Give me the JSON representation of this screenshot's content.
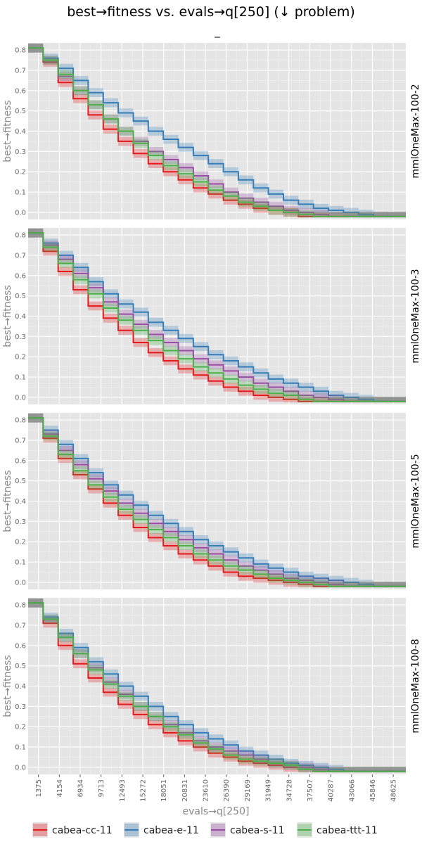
{
  "chart_data": {
    "type": "line",
    "title": "best→fitness vs. evals→q[250] (↓ problem)",
    "subtitle": "_",
    "xlabel": "evals→q[250]",
    "ylabel": "best→fitness",
    "xlim": [
      0,
      50300
    ],
    "ylim": [
      -0.035,
      0.835
    ],
    "yticks": [
      0.0,
      0.1,
      0.2,
      0.3,
      0.4,
      0.5,
      0.6,
      0.7,
      0.8
    ],
    "ytick_labels": [
      "0.0",
      "0.1",
      "0.2",
      "0.3",
      "0.4",
      "0.5",
      "0.6",
      "0.7",
      "0.8"
    ],
    "xticks": [
      1375,
      4154,
      6934,
      9713,
      12493,
      15272,
      18051,
      20831,
      23610,
      26390,
      29169,
      31949,
      34728,
      37507,
      40287,
      43066,
      45846,
      48625
    ],
    "xtick_labels": [
      "1375",
      "4154",
      "6934",
      "9713",
      "12493",
      "15272",
      "18051",
      "20831",
      "23610",
      "26390",
      "29169",
      "31949",
      "34728",
      "37507",
      "40287",
      "43066",
      "45846",
      "48625"
    ],
    "grid": true,
    "legend_position": "bottom",
    "colors": {
      "cabea-cc-11": "#e41a1c",
      "cabea-e-11": "#377eb8",
      "cabea-s-11": "#984ea3",
      "cabea-ttt-11": "#4daf4a"
    },
    "legend": [
      "cabea-cc-11",
      "cabea-e-11",
      "cabea-s-11",
      "cabea-ttt-11"
    ],
    "x": [
      0,
      2000,
      4000,
      6000,
      8000,
      10000,
      12000,
      14000,
      16000,
      18000,
      20000,
      22000,
      24000,
      26000,
      28000,
      30000,
      32000,
      34000,
      36000,
      38000,
      40000,
      42000,
      44000,
      46000,
      48000,
      50300
    ],
    "panels": [
      {
        "facet": "mmlOneMax-100-2",
        "series": [
          {
            "name": "cabea-cc-11",
            "values": [
              0.81,
              0.74,
              0.64,
              0.56,
              0.48,
              0.41,
              0.35,
              0.29,
              0.24,
              0.2,
              0.16,
              0.12,
              0.09,
              0.06,
              0.04,
              0.02,
              0.01,
              0.0,
              -0.02,
              -0.02,
              -0.02,
              -0.02,
              -0.02,
              -0.02,
              -0.02,
              -0.02
            ]
          },
          {
            "name": "cabea-e-11",
            "values": [
              0.81,
              0.76,
              0.71,
              0.65,
              0.59,
              0.54,
              0.49,
              0.45,
              0.4,
              0.36,
              0.32,
              0.28,
              0.24,
              0.2,
              0.16,
              0.12,
              0.09,
              0.06,
              0.04,
              0.02,
              0.01,
              0.0,
              -0.01,
              -0.02,
              -0.02,
              -0.02
            ]
          },
          {
            "name": "cabea-s-11",
            "values": [
              0.81,
              0.75,
              0.67,
              0.6,
              0.53,
              0.46,
              0.4,
              0.35,
              0.3,
              0.26,
              0.22,
              0.18,
              0.14,
              0.1,
              0.07,
              0.05,
              0.03,
              0.01,
              0.0,
              -0.01,
              -0.02,
              -0.02,
              -0.02,
              -0.02,
              -0.02,
              -0.02
            ]
          },
          {
            "name": "cabea-ttt-11",
            "values": [
              0.81,
              0.75,
              0.68,
              0.6,
              0.53,
              0.46,
              0.4,
              0.34,
              0.28,
              0.23,
              0.19,
              0.15,
              0.11,
              0.08,
              0.05,
              0.03,
              0.01,
              0.0,
              -0.01,
              -0.02,
              -0.02,
              -0.02,
              -0.02,
              -0.02,
              -0.02,
              -0.02
            ]
          }
        ]
      },
      {
        "facet": "mmlOneMax-100-3",
        "series": [
          {
            "name": "cabea-cc-11",
            "values": [
              0.81,
              0.72,
              0.62,
              0.53,
              0.45,
              0.39,
              0.33,
              0.27,
              0.22,
              0.18,
              0.14,
              0.11,
              0.08,
              0.05,
              0.03,
              0.01,
              0.0,
              -0.01,
              -0.02,
              -0.02,
              -0.02,
              -0.02,
              -0.02,
              -0.02,
              -0.02,
              -0.02
            ]
          },
          {
            "name": "cabea-e-11",
            "values": [
              0.81,
              0.76,
              0.7,
              0.64,
              0.57,
              0.51,
              0.46,
              0.42,
              0.37,
              0.33,
              0.29,
              0.25,
              0.21,
              0.18,
              0.15,
              0.12,
              0.09,
              0.07,
              0.05,
              0.03,
              0.01,
              0.0,
              -0.01,
              -0.02,
              -0.02,
              -0.02
            ]
          },
          {
            "name": "cabea-s-11",
            "values": [
              0.81,
              0.75,
              0.68,
              0.61,
              0.54,
              0.47,
              0.41,
              0.36,
              0.31,
              0.27,
              0.23,
              0.19,
              0.16,
              0.13,
              0.1,
              0.07,
              0.05,
              0.03,
              0.01,
              0.0,
              -0.01,
              -0.02,
              -0.02,
              -0.02,
              -0.02,
              -0.02
            ]
          },
          {
            "name": "cabea-ttt-11",
            "values": [
              0.81,
              0.74,
              0.66,
              0.58,
              0.51,
              0.44,
              0.38,
              0.33,
              0.28,
              0.23,
              0.19,
              0.15,
              0.12,
              0.09,
              0.06,
              0.04,
              0.02,
              0.01,
              -0.01,
              -0.02,
              -0.02,
              -0.02,
              -0.02,
              -0.02,
              -0.02,
              -0.02
            ]
          }
        ]
      },
      {
        "facet": "mmlOneMax-100-5",
        "series": [
          {
            "name": "cabea-cc-11",
            "values": [
              0.81,
              0.71,
              0.61,
              0.53,
              0.46,
              0.39,
              0.33,
              0.27,
              0.22,
              0.18,
              0.14,
              0.11,
              0.08,
              0.05,
              0.03,
              0.02,
              0.01,
              0.0,
              -0.01,
              -0.02,
              -0.02,
              -0.02,
              -0.02,
              -0.02,
              -0.02,
              -0.02
            ]
          },
          {
            "name": "cabea-e-11",
            "values": [
              0.81,
              0.75,
              0.68,
              0.61,
              0.54,
              0.48,
              0.43,
              0.38,
              0.33,
              0.29,
              0.25,
              0.21,
              0.18,
              0.15,
              0.12,
              0.09,
              0.07,
              0.05,
              0.03,
              0.02,
              0.01,
              0.0,
              -0.01,
              -0.02,
              -0.02,
              -0.02
            ]
          },
          {
            "name": "cabea-s-11",
            "values": [
              0.81,
              0.73,
              0.65,
              0.58,
              0.51,
              0.45,
              0.39,
              0.34,
              0.29,
              0.25,
              0.21,
              0.17,
              0.14,
              0.11,
              0.08,
              0.06,
              0.04,
              0.02,
              0.01,
              0.0,
              -0.01,
              -0.02,
              -0.02,
              -0.02,
              -0.02,
              -0.02
            ]
          },
          {
            "name": "cabea-ttt-11",
            "values": [
              0.81,
              0.72,
              0.63,
              0.55,
              0.48,
              0.42,
              0.36,
              0.31,
              0.26,
              0.22,
              0.18,
              0.14,
              0.11,
              0.08,
              0.06,
              0.04,
              0.02,
              0.01,
              0.0,
              -0.01,
              -0.02,
              -0.02,
              -0.02,
              -0.02,
              -0.02,
              -0.02
            ]
          }
        ]
      },
      {
        "facet": "mmlOneMax-100-8",
        "series": [
          {
            "name": "cabea-cc-11",
            "values": [
              0.81,
              0.71,
              0.6,
              0.51,
              0.44,
              0.37,
              0.31,
              0.26,
              0.21,
              0.17,
              0.13,
              0.1,
              0.07,
              0.05,
              0.03,
              0.02,
              0.01,
              0.0,
              -0.01,
              -0.02,
              -0.02,
              -0.02,
              -0.02,
              -0.02,
              -0.02,
              -0.02
            ]
          },
          {
            "name": "cabea-e-11",
            "values": [
              0.81,
              0.74,
              0.66,
              0.59,
              0.52,
              0.46,
              0.4,
              0.35,
              0.3,
              0.25,
              0.21,
              0.17,
              0.14,
              0.11,
              0.08,
              0.06,
              0.04,
              0.02,
              0.01,
              0.0,
              -0.01,
              -0.02,
              -0.02,
              -0.02,
              -0.02,
              -0.02
            ]
          },
          {
            "name": "cabea-s-11",
            "values": [
              0.81,
              0.73,
              0.64,
              0.56,
              0.49,
              0.42,
              0.36,
              0.3,
              0.25,
              0.21,
              0.17,
              0.13,
              0.1,
              0.08,
              0.06,
              0.04,
              0.02,
              0.01,
              0.0,
              -0.01,
              -0.02,
              -0.02,
              -0.02,
              -0.02,
              -0.02,
              -0.02
            ]
          },
          {
            "name": "cabea-ttt-11",
            "values": [
              0.81,
              0.73,
              0.64,
              0.56,
              0.48,
              0.41,
              0.35,
              0.3,
              0.25,
              0.2,
              0.16,
              0.12,
              0.09,
              0.06,
              0.04,
              0.03,
              0.02,
              0.01,
              -0.01,
              -0.02,
              -0.02,
              -0.02,
              -0.02,
              -0.02,
              -0.02,
              -0.02
            ]
          }
        ]
      }
    ]
  }
}
